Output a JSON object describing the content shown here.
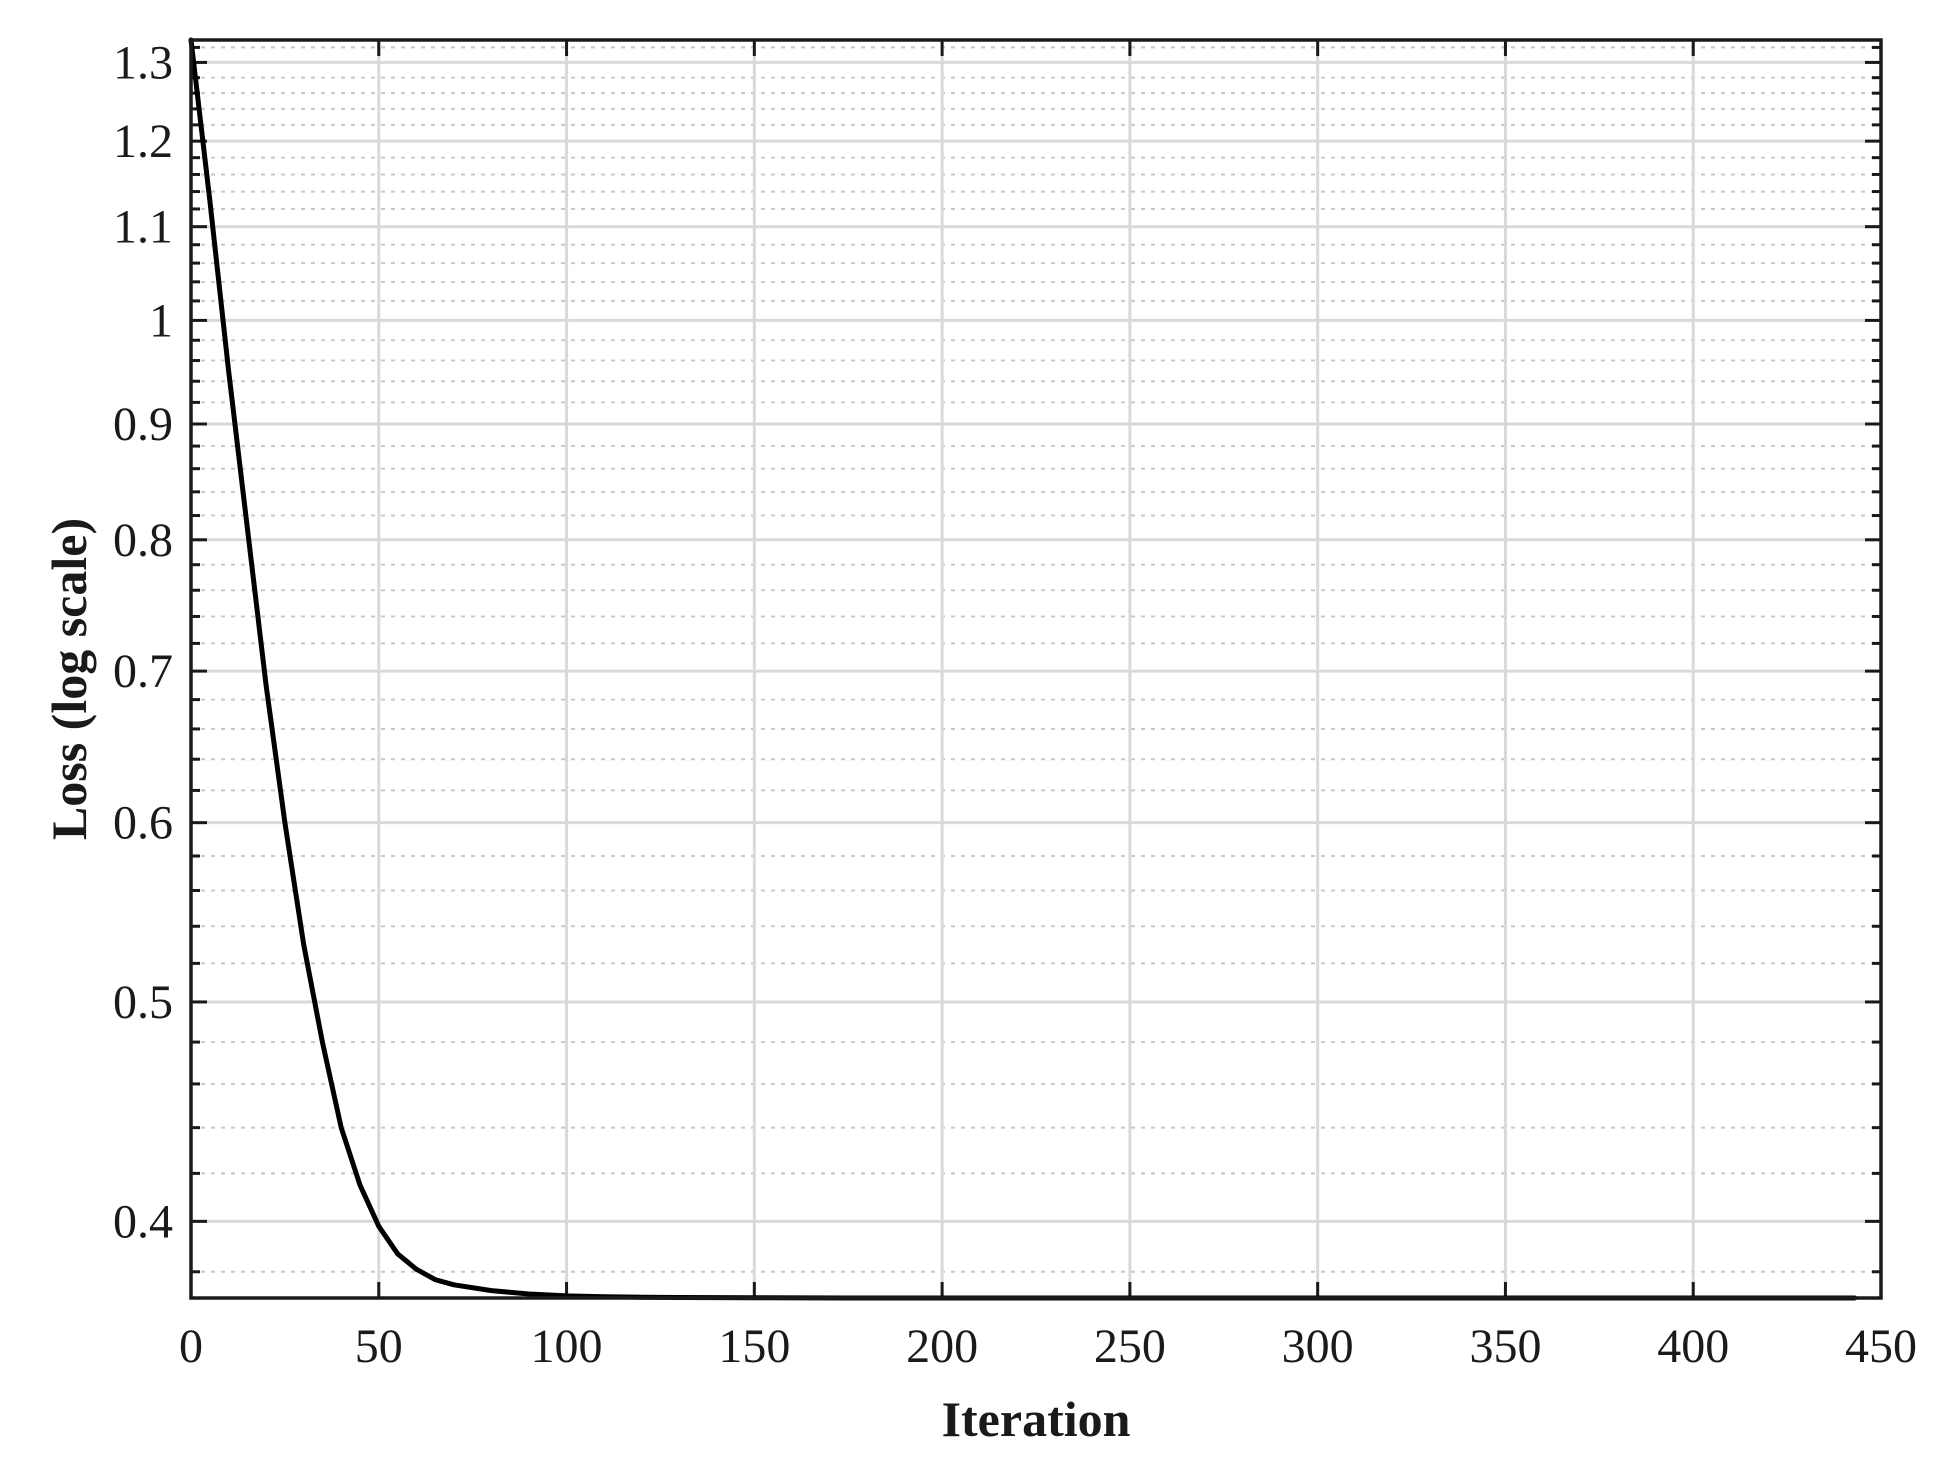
{
  "chart_data": {
    "type": "line",
    "title": "",
    "xlabel": "Iteration",
    "ylabel": "Loss (log scale)",
    "xscale": "linear",
    "yscale": "log",
    "xlim": [
      0,
      450
    ],
    "ylim": [
      0.37,
      1.33
    ],
    "x_ticks": [
      0,
      50,
      100,
      150,
      200,
      250,
      300,
      350,
      400,
      450
    ],
    "x_tick_labels": [
      "0",
      "50",
      "100",
      "150",
      "200",
      "250",
      "300",
      "350",
      "400",
      "450"
    ],
    "y_ticks": [
      0.4,
      0.5,
      0.6,
      0.7,
      0.8,
      0.9,
      1,
      1.1,
      1.2,
      1.3
    ],
    "y_tick_labels": [
      "0.4",
      "0.5",
      "0.6",
      "0.7",
      "0.8",
      "0.9",
      "1",
      "1.1",
      "1.2",
      "1.3"
    ],
    "grid": true,
    "minor_grid": true,
    "legend": "none",
    "series": [
      {
        "color": "#000000",
        "x": [
          0,
          5,
          10,
          15,
          20,
          25,
          30,
          35,
          40,
          45,
          50,
          55,
          60,
          65,
          70,
          80,
          90,
          100,
          110,
          120,
          130,
          150,
          175,
          200,
          250,
          300,
          350,
          400,
          443
        ],
        "y": [
          1.33,
          1.13,
          0.95,
          0.81,
          0.69,
          0.6,
          0.53,
          0.48,
          0.44,
          0.415,
          0.398,
          0.387,
          0.381,
          0.377,
          0.375,
          0.3728,
          0.3715,
          0.3708,
          0.3705,
          0.3703,
          0.3702,
          0.3701,
          0.37,
          0.37,
          0.37,
          0.37,
          0.37,
          0.37,
          0.37
        ]
      }
    ]
  }
}
